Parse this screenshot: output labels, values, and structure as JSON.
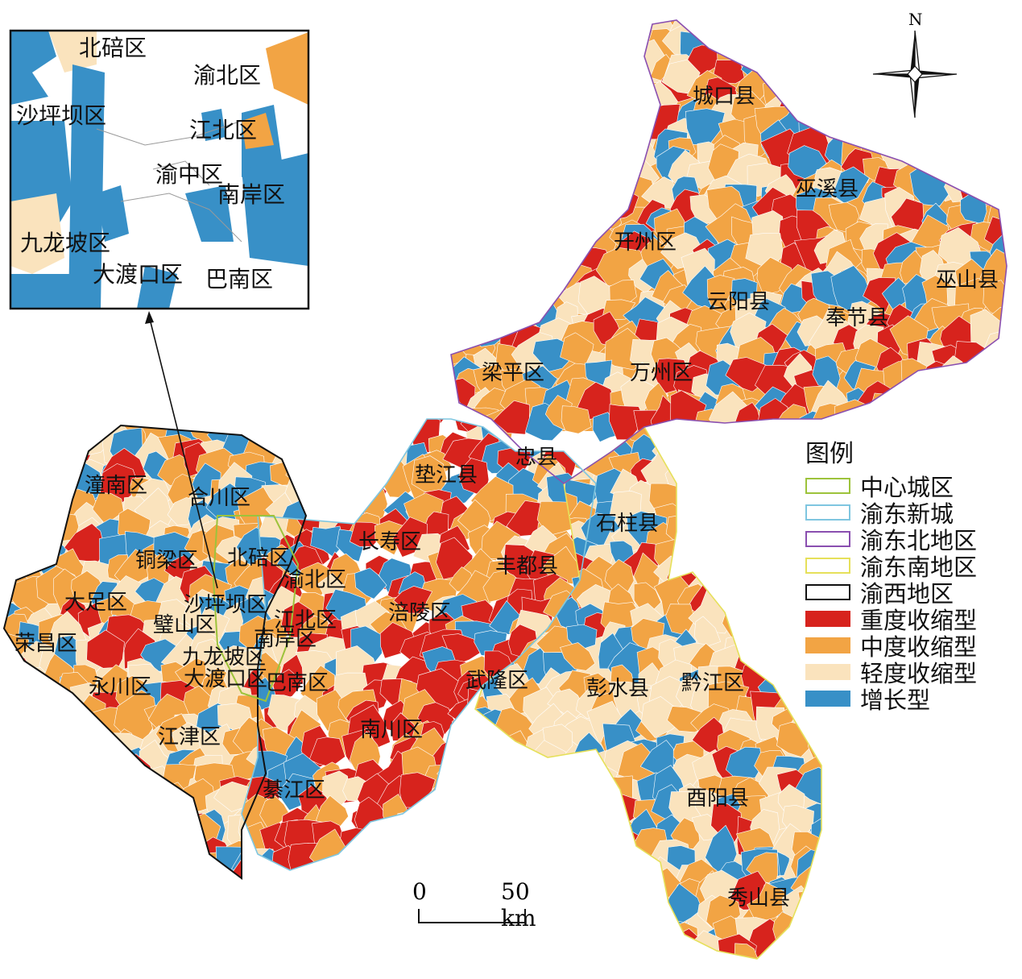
{
  "inset": {
    "labels": [
      "北碚区",
      "渝北区",
      "沙坪坝区",
      "江北区",
      "渝中区",
      "南岸区",
      "九龙坡区",
      "大渡口区",
      "巴南区"
    ]
  },
  "map_labels": [
    "城口县",
    "巫溪县",
    "开州区",
    "巫山县",
    "云阳县",
    "奉节县",
    "梁平区",
    "万州区",
    "垫江县",
    "忠县",
    "潼南区",
    "合川区",
    "长寿区",
    "石柱县",
    "铜梁区",
    "北碚区",
    "渝北区",
    "丰都县",
    "大足区",
    "沙坪坝区",
    "江北区",
    "涪陵区",
    "璧山区",
    "荣昌区",
    "南岸区",
    "九龙坡区",
    "永川区",
    "大渡口区",
    "巴南区",
    "武隆区",
    "彭水县",
    "黔江区",
    "江津区",
    "南川区",
    "綦江区",
    "酉阳县",
    "秀山县"
  ],
  "legend": {
    "title": "图例",
    "items": [
      {
        "label": "中心城区",
        "type": "outline",
        "color": "#9dc33b"
      },
      {
        "label": "渝东新城",
        "type": "outline",
        "color": "#7fc6e0"
      },
      {
        "label": "渝东北地区",
        "type": "outline",
        "color": "#8a4fb0"
      },
      {
        "label": "渝东南地区",
        "type": "outline",
        "color": "#e6e05a"
      },
      {
        "label": "渝西地区",
        "type": "outline",
        "color": "#111111"
      },
      {
        "label": "重度收缩型",
        "type": "fill",
        "color": "#d7231d"
      },
      {
        "label": "中度收缩型",
        "type": "fill",
        "color": "#f2a444"
      },
      {
        "label": "轻度收缩型",
        "type": "fill",
        "color": "#fae3bd"
      },
      {
        "label": "增长型",
        "type": "fill",
        "color": "#3890c7"
      }
    ]
  },
  "scale": {
    "zero": "0",
    "distance": "50 km"
  },
  "north": "N"
}
